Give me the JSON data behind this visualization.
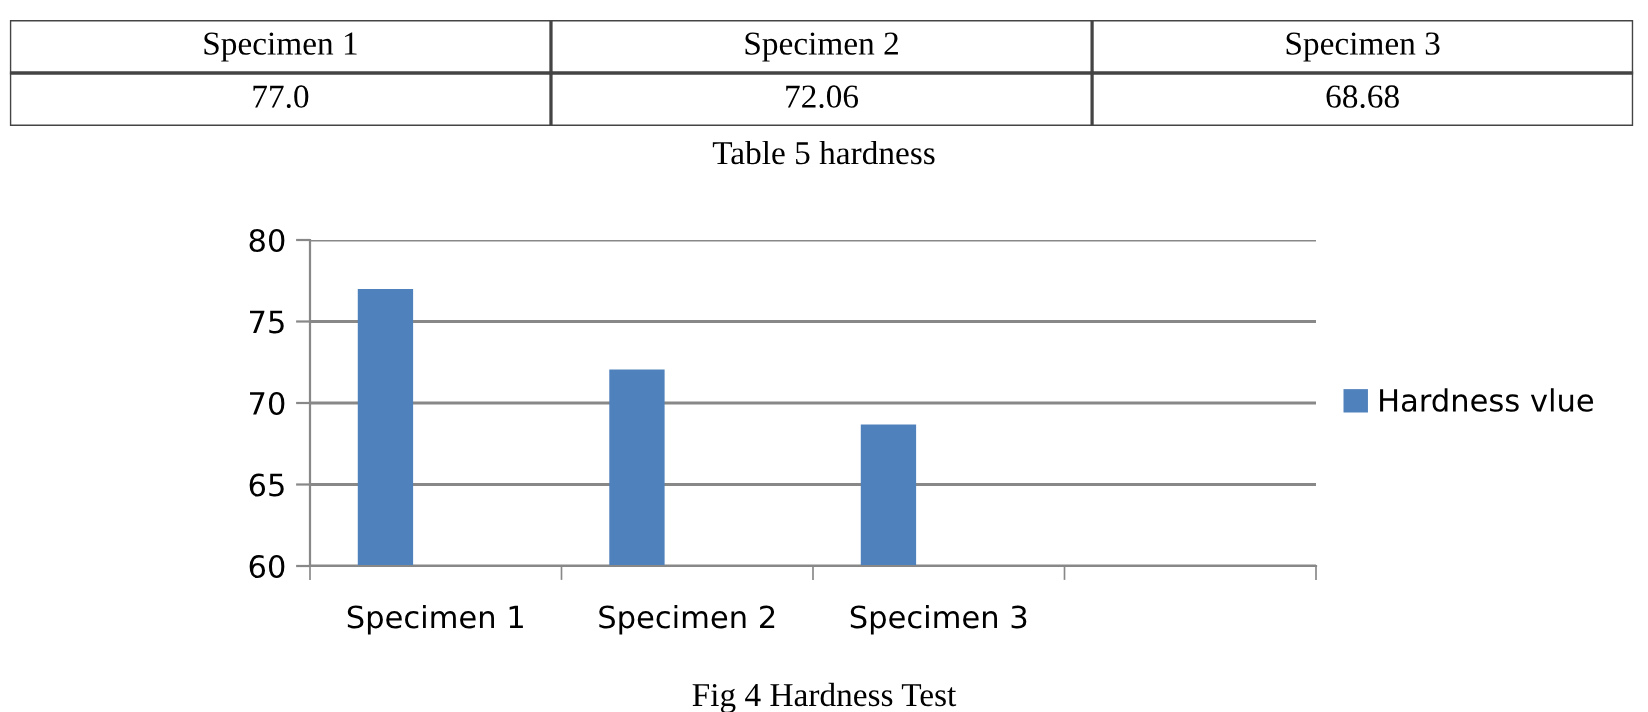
{
  "chart_data": {
    "type": "bar",
    "categories": [
      "Specimen 1",
      "Specimen 2",
      "Specimen 3",
      null
    ],
    "series": [
      {
        "name": "Hardness vlue",
        "color": "#4f81bd",
        "values": [
          77.0,
          72.06,
          68.68,
          null
        ]
      }
    ],
    "value_labels": [
      "77.0",
      "72.06",
      "68.68",
      null
    ],
    "ylim": [
      60,
      80
    ],
    "yticks": [
      60,
      65,
      70,
      75,
      80
    ],
    "grid": "y",
    "legend": "right",
    "annotations": [
      "Table 5 hardness",
      "Fig 4 Hardness Test"
    ]
  }
}
